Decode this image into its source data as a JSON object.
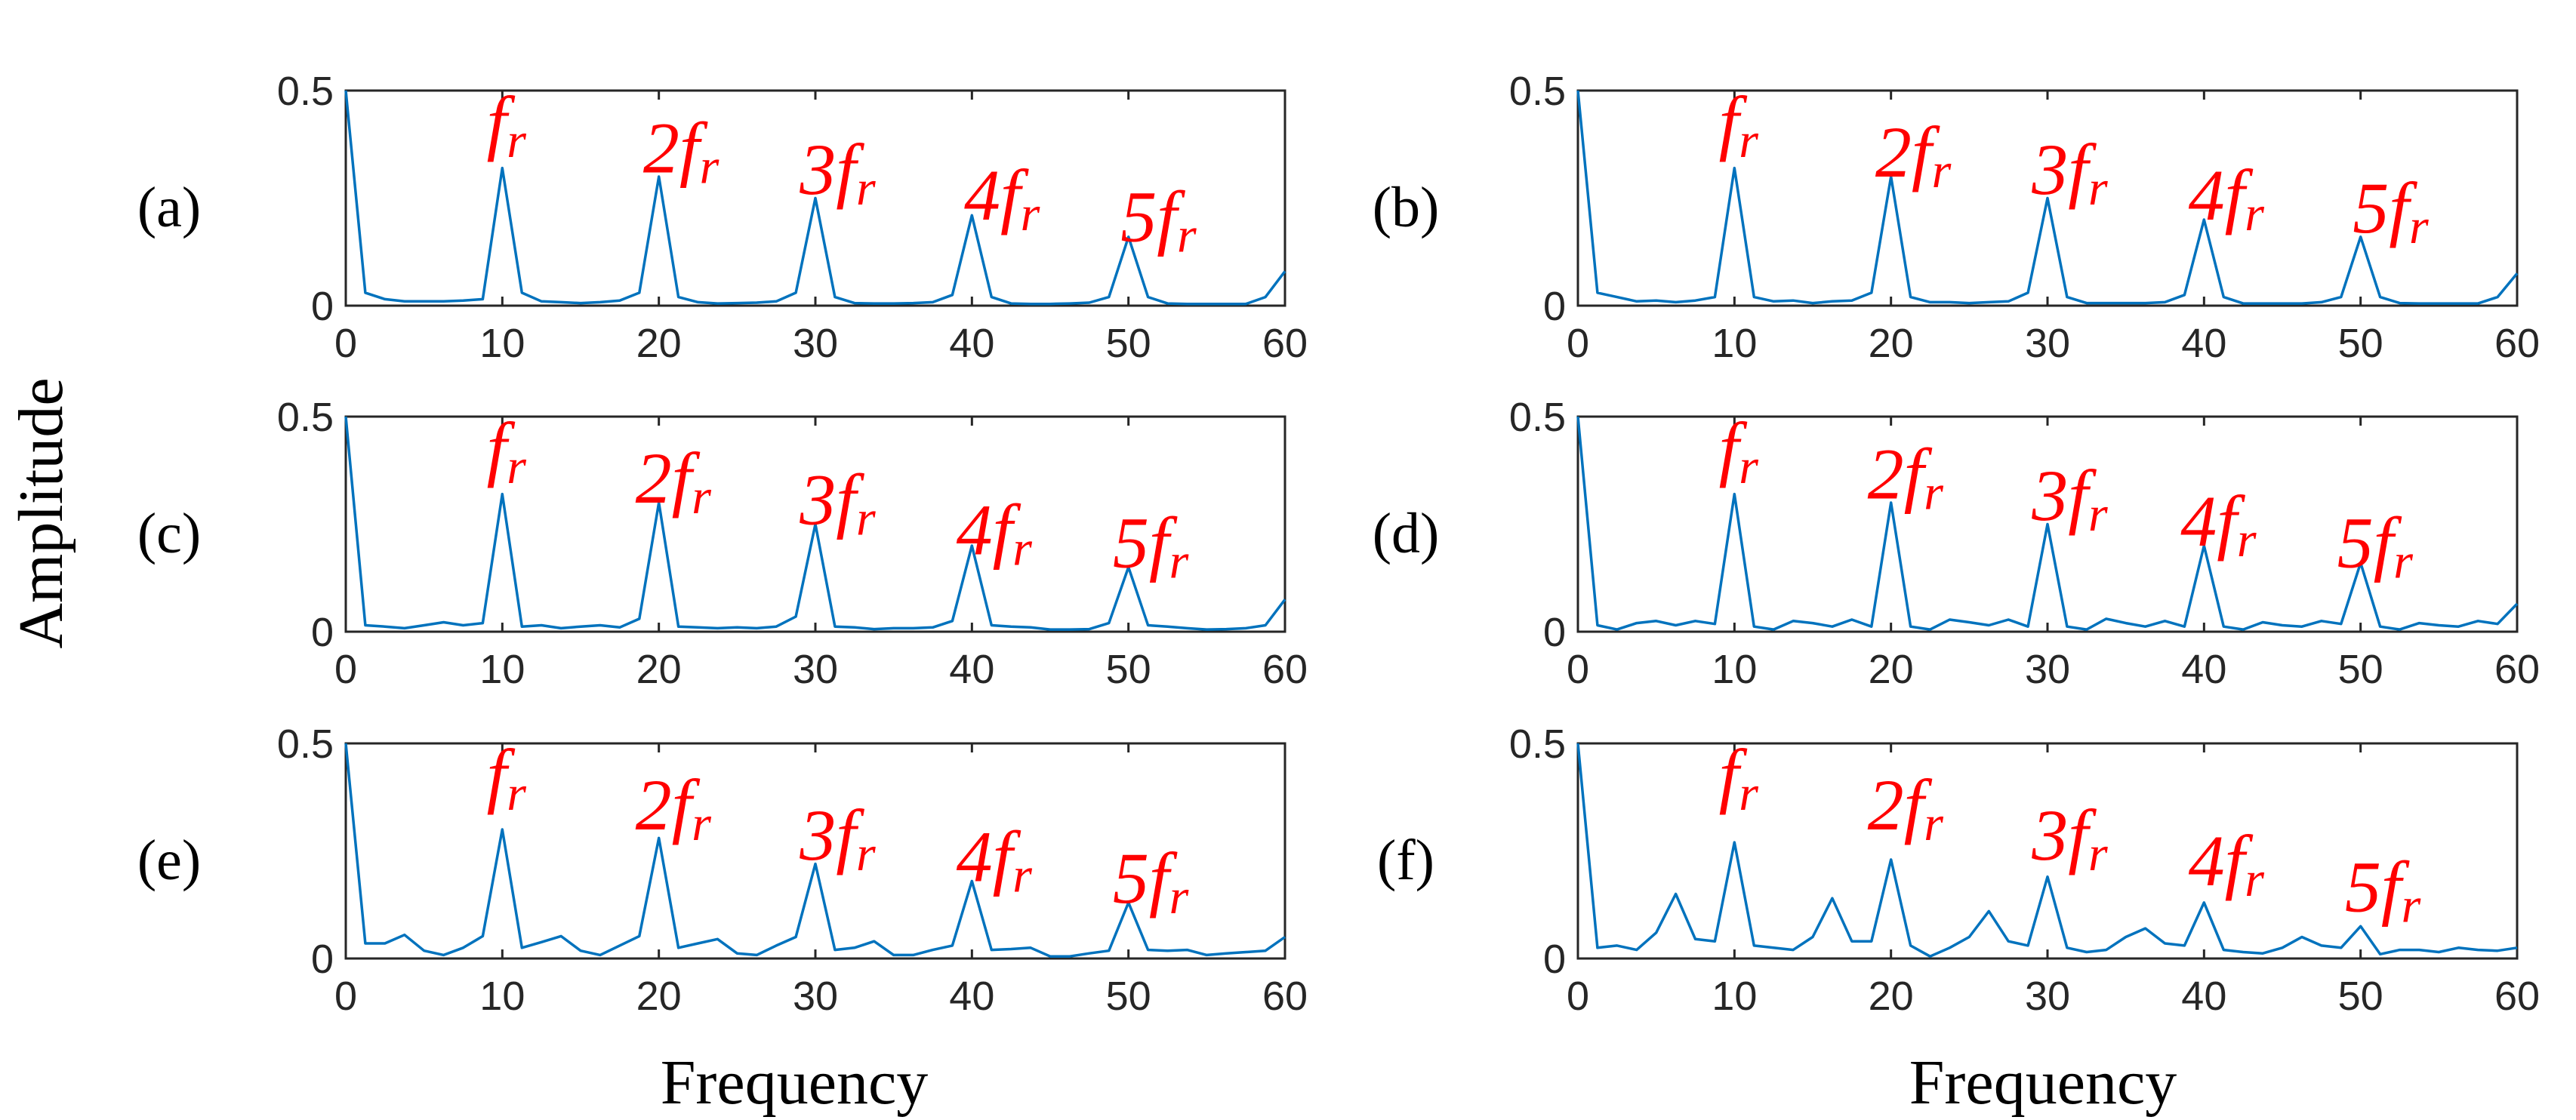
{
  "chart_data": {
    "type": "line",
    "ylabel": "Amplitude",
    "xlabel": "Frequency",
    "xlim": [
      0,
      60
    ],
    "ylim": [
      0,
      0.5
    ],
    "xticks": [
      "0",
      "10",
      "20",
      "30",
      "40",
      "50",
      "60"
    ],
    "yticks": [
      "0",
      "0.5"
    ],
    "series_color": "#0072bd",
    "annotation_color": "#ff0000",
    "x": [
      0,
      1.25,
      2.5,
      3.75,
      5,
      6.25,
      7.5,
      8.75,
      10,
      11.25,
      12.5,
      13.75,
      15,
      16.25,
      17.5,
      18.75,
      20,
      21.25,
      22.5,
      23.75,
      25,
      26.25,
      27.5,
      28.75,
      30,
      31.25,
      32.5,
      33.75,
      35,
      36.25,
      37.5,
      38.75,
      40,
      41.25,
      42.5,
      43.75,
      45,
      46.25,
      47.5,
      48.75,
      50,
      51.25,
      52.5,
      53.75,
      55,
      56.25,
      57.5,
      58.75,
      60
    ],
    "panels": [
      {
        "label": "(a)",
        "annotations": [
          {
            "num": "",
            "x": 9,
            "y": 0.37
          },
          {
            "num": "2",
            "x": 19,
            "y": 0.31
          },
          {
            "num": "3",
            "x": 29,
            "y": 0.26
          },
          {
            "num": "4",
            "x": 39.5,
            "y": 0.2
          },
          {
            "num": "5",
            "x": 49.5,
            "y": 0.15
          }
        ],
        "values": [
          0.5,
          0.03,
          0.015,
          0.01,
          0.01,
          0.01,
          0.012,
          0.015,
          0.32,
          0.03,
          0.01,
          0.008,
          0.006,
          0.008,
          0.012,
          0.03,
          0.3,
          0.02,
          0.008,
          0.005,
          0.006,
          0.007,
          0.01,
          0.03,
          0.25,
          0.02,
          0.006,
          0.005,
          0.005,
          0.006,
          0.008,
          0.025,
          0.21,
          0.02,
          0.005,
          0.004,
          0.004,
          0.005,
          0.007,
          0.02,
          0.16,
          0.02,
          0.005,
          0.004,
          0.004,
          0.004,
          0.004,
          0.02,
          0.08
        ]
      },
      {
        "label": "(b)",
        "annotations": [
          {
            "num": "",
            "x": 9,
            "y": 0.37
          },
          {
            "num": "2",
            "x": 19,
            "y": 0.3
          },
          {
            "num": "3",
            "x": 29,
            "y": 0.26
          },
          {
            "num": "4",
            "x": 39,
            "y": 0.2
          },
          {
            "num": "5",
            "x": 49.5,
            "y": 0.17
          }
        ],
        "values": [
          0.5,
          0.03,
          0.02,
          0.01,
          0.012,
          0.008,
          0.012,
          0.02,
          0.32,
          0.02,
          0.01,
          0.012,
          0.006,
          0.01,
          0.012,
          0.03,
          0.3,
          0.02,
          0.008,
          0.008,
          0.006,
          0.008,
          0.01,
          0.03,
          0.25,
          0.02,
          0.006,
          0.006,
          0.006,
          0.006,
          0.008,
          0.025,
          0.2,
          0.02,
          0.005,
          0.005,
          0.005,
          0.005,
          0.008,
          0.02,
          0.16,
          0.02,
          0.006,
          0.005,
          0.005,
          0.005,
          0.005,
          0.02,
          0.075
        ]
      },
      {
        "label": "(c)",
        "annotations": [
          {
            "num": "",
            "x": 9,
            "y": 0.37
          },
          {
            "num": "2",
            "x": 18.5,
            "y": 0.3
          },
          {
            "num": "3",
            "x": 29,
            "y": 0.25
          },
          {
            "num": "4",
            "x": 39,
            "y": 0.18
          },
          {
            "num": "5",
            "x": 49,
            "y": 0.15
          }
        ],
        "values": [
          0.5,
          0.015,
          0.012,
          0.008,
          0.015,
          0.022,
          0.015,
          0.02,
          0.32,
          0.012,
          0.015,
          0.008,
          0.012,
          0.015,
          0.01,
          0.03,
          0.3,
          0.012,
          0.01,
          0.008,
          0.01,
          0.008,
          0.012,
          0.035,
          0.25,
          0.012,
          0.01,
          0.006,
          0.008,
          0.008,
          0.01,
          0.025,
          0.2,
          0.015,
          0.012,
          0.01,
          0.005,
          0.005,
          0.006,
          0.02,
          0.15,
          0.015,
          0.012,
          0.008,
          0.005,
          0.006,
          0.008,
          0.015,
          0.075
        ]
      },
      {
        "label": "(d)",
        "annotations": [
          {
            "num": "",
            "x": 9,
            "y": 0.37
          },
          {
            "num": "2",
            "x": 18.5,
            "y": 0.31
          },
          {
            "num": "3",
            "x": 29,
            "y": 0.26
          },
          {
            "num": "4",
            "x": 38.5,
            "y": 0.2
          },
          {
            "num": "5",
            "x": 48.5,
            "y": 0.15
          }
        ],
        "values": [
          0.5,
          0.015,
          0.005,
          0.02,
          0.025,
          0.015,
          0.025,
          0.018,
          0.32,
          0.012,
          0.005,
          0.025,
          0.02,
          0.012,
          0.028,
          0.012,
          0.3,
          0.012,
          0.005,
          0.028,
          0.022,
          0.015,
          0.028,
          0.012,
          0.25,
          0.012,
          0.005,
          0.03,
          0.02,
          0.012,
          0.025,
          0.012,
          0.2,
          0.012,
          0.005,
          0.022,
          0.015,
          0.012,
          0.025,
          0.018,
          0.16,
          0.012,
          0.005,
          0.02,
          0.015,
          0.012,
          0.025,
          0.018,
          0.065
        ]
      },
      {
        "label": "(e)",
        "annotations": [
          {
            "num": "",
            "x": 9,
            "y": 0.37
          },
          {
            "num": "2",
            "x": 18.5,
            "y": 0.3
          },
          {
            "num": "3",
            "x": 29,
            "y": 0.23
          },
          {
            "num": "4",
            "x": 39,
            "y": 0.18
          },
          {
            "num": "5",
            "x": 49,
            "y": 0.13
          }
        ],
        "values": [
          0.5,
          0.035,
          0.035,
          0.055,
          0.018,
          0.008,
          0.025,
          0.052,
          0.3,
          0.025,
          0.038,
          0.052,
          0.018,
          0.008,
          0.03,
          0.052,
          0.28,
          0.025,
          0.035,
          0.045,
          0.012,
          0.008,
          0.03,
          0.05,
          0.22,
          0.02,
          0.025,
          0.04,
          0.008,
          0.008,
          0.02,
          0.03,
          0.18,
          0.02,
          0.022,
          0.025,
          0.005,
          0.005,
          0.012,
          0.018,
          0.13,
          0.02,
          0.018,
          0.02,
          0.008,
          0.012,
          0.015,
          0.018,
          0.05
        ]
      },
      {
        "label": "(f)",
        "annotations": [
          {
            "num": "",
            "x": 9,
            "y": 0.37
          },
          {
            "num": "2",
            "x": 18.5,
            "y": 0.3
          },
          {
            "num": "3",
            "x": 29,
            "y": 0.23
          },
          {
            "num": "4",
            "x": 39,
            "y": 0.17
          },
          {
            "num": "5",
            "x": 49,
            "y": 0.11
          }
        ],
        "values": [
          0.5,
          0.025,
          0.03,
          0.02,
          0.06,
          0.15,
          0.045,
          0.04,
          0.27,
          0.03,
          0.025,
          0.02,
          0.05,
          0.14,
          0.04,
          0.04,
          0.23,
          0.03,
          0.005,
          0.025,
          0.05,
          0.11,
          0.04,
          0.03,
          0.19,
          0.025,
          0.015,
          0.02,
          0.05,
          0.07,
          0.035,
          0.03,
          0.13,
          0.02,
          0.015,
          0.012,
          0.025,
          0.05,
          0.03,
          0.025,
          0.075,
          0.01,
          0.02,
          0.02,
          0.015,
          0.025,
          0.02,
          0.018,
          0.025
        ]
      }
    ]
  }
}
